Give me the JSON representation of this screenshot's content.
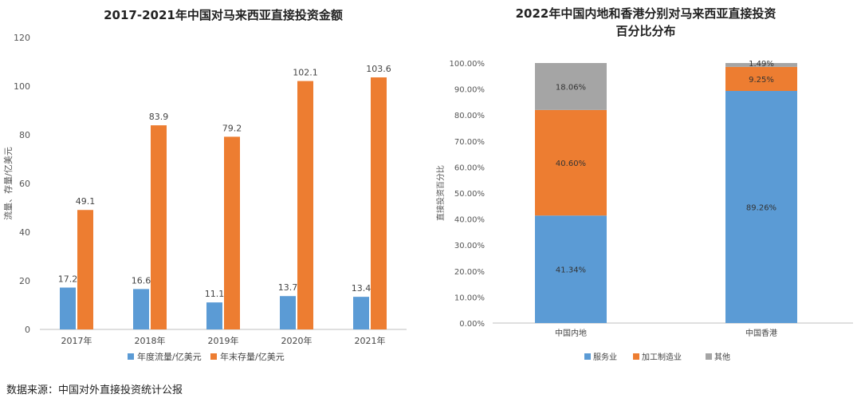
{
  "source_note": "数据来源：中国对外直接投资统计公报",
  "chart_data": [
    {
      "type": "bar",
      "title": "2017-2021年中国对马来西亚直接投资金额",
      "ylabel": "流量、存量/亿美元",
      "xlabel": "",
      "ylim": [
        0,
        120
      ],
      "yticks": [
        0,
        20,
        40,
        60,
        80,
        100,
        120
      ],
      "categories": [
        "2017年",
        "2018年",
        "2019年",
        "2020年",
        "2021年"
      ],
      "series": [
        {
          "name": "年度流量/亿美元",
          "color": "#5b9bd5",
          "values": [
            17.2,
            16.6,
            11.1,
            13.7,
            13.4
          ],
          "labels": [
            "17.2",
            "16.6",
            "11.1",
            "13.7",
            "13.4"
          ]
        },
        {
          "name": "年末存量/亿美元",
          "color": "#ed7d31",
          "values": [
            49.1,
            83.9,
            79.2,
            102.1,
            103.6
          ],
          "labels": [
            "49.1",
            "83.9",
            "79.2",
            "102.1",
            "103.6"
          ]
        }
      ],
      "legend": "bottom",
      "grid": false
    },
    {
      "type": "bar",
      "stacked": true,
      "title": "2022年中国内地和香港分别对马来西亚直接投资百分比分布",
      "title_lines": [
        "2022年中国内地和香港分别对马来西亚直接投资",
        "百分比分布"
      ],
      "ylabel": "直接投资百分比",
      "xlabel": "",
      "ylim": [
        0,
        100
      ],
      "yticks": [
        "0.00%",
        "10.00%",
        "20.00%",
        "30.00%",
        "40.00%",
        "50.00%",
        "60.00%",
        "70.00%",
        "80.00%",
        "90.00%",
        "100.00%"
      ],
      "categories": [
        "中国内地",
        "中国香港"
      ],
      "series": [
        {
          "name": "服务业",
          "color": "#5b9bd5",
          "values": [
            41.34,
            89.26
          ],
          "labels": [
            "41.34%",
            "89.26%"
          ]
        },
        {
          "name": "加工制造业",
          "color": "#ed7d31",
          "values": [
            40.6,
            9.25
          ],
          "labels": [
            "40.60%",
            "9.25%"
          ]
        },
        {
          "name": "其他",
          "color": "#a5a5a5",
          "values": [
            18.06,
            1.49
          ],
          "labels": [
            "18.06%",
            "1.49%"
          ]
        }
      ],
      "legend": "bottom",
      "grid": false
    }
  ]
}
